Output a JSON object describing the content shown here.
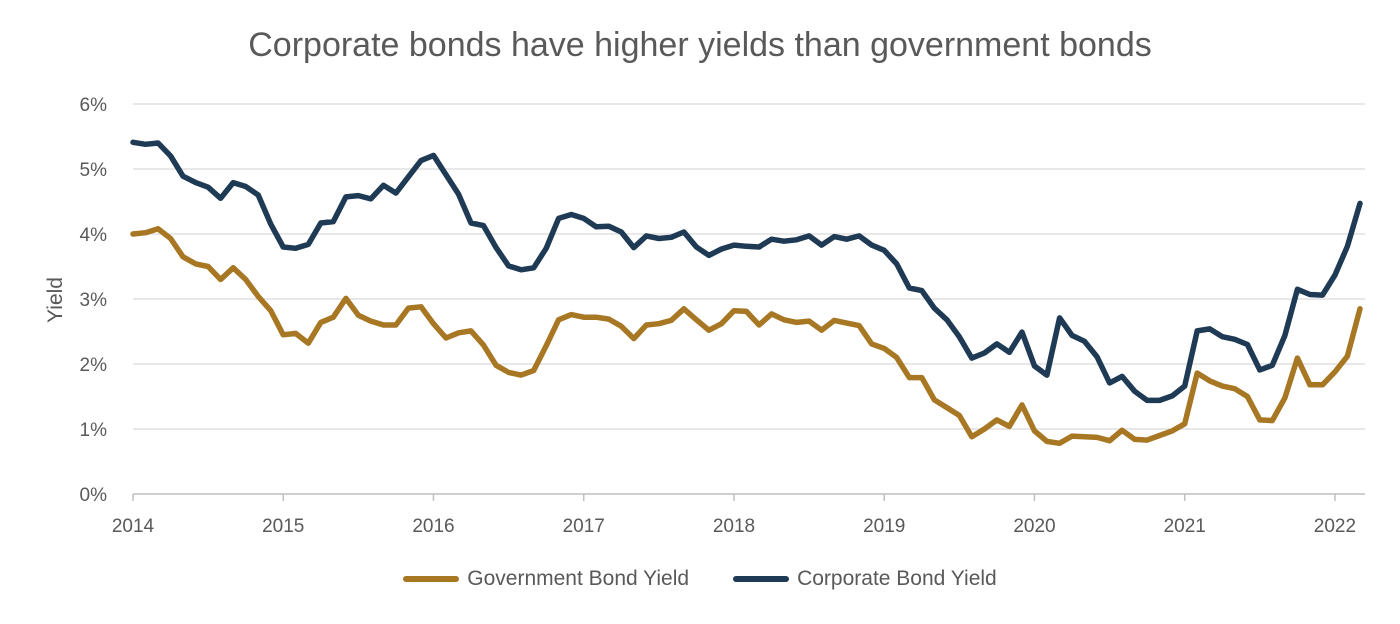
{
  "chart_data": {
    "type": "line",
    "title": "Corporate bonds have higher yields than government bonds",
    "xlabel": "",
    "ylabel": "Yield",
    "xlim": [
      2014,
      2022.2
    ],
    "ylim": [
      0,
      6
    ],
    "x_ticks": [
      "2014",
      "2015",
      "2016",
      "2017",
      "2018",
      "2019",
      "2020",
      "2021",
      "2022"
    ],
    "y_ticks": [
      "0%",
      "1%",
      "2%",
      "3%",
      "4%",
      "5%",
      "6%"
    ],
    "grid": true,
    "legend_position": "bottom",
    "x": [
      2014.0,
      2014.083,
      2014.167,
      2014.25,
      2014.333,
      2014.417,
      2014.5,
      2014.583,
      2014.667,
      2014.75,
      2014.833,
      2014.917,
      2015.0,
      2015.083,
      2015.167,
      2015.25,
      2015.333,
      2015.417,
      2015.5,
      2015.583,
      2015.667,
      2015.75,
      2015.833,
      2015.917,
      2016.0,
      2016.083,
      2016.167,
      2016.25,
      2016.333,
      2016.417,
      2016.5,
      2016.583,
      2016.667,
      2016.75,
      2016.833,
      2016.917,
      2017.0,
      2017.083,
      2017.167,
      2017.25,
      2017.333,
      2017.417,
      2017.5,
      2017.583,
      2017.667,
      2017.75,
      2017.833,
      2017.917,
      2018.0,
      2018.083,
      2018.167,
      2018.25,
      2018.333,
      2018.417,
      2018.5,
      2018.583,
      2018.667,
      2018.75,
      2018.833,
      2018.917,
      2019.0,
      2019.083,
      2019.167,
      2019.25,
      2019.333,
      2019.417,
      2019.5,
      2019.583,
      2019.667,
      2019.75,
      2019.833,
      2019.917,
      2020.0,
      2020.083,
      2020.167,
      2020.25,
      2020.333,
      2020.417,
      2020.5,
      2020.583,
      2020.667,
      2020.75,
      2020.833,
      2020.917,
      2021.0,
      2021.083,
      2021.167,
      2021.25,
      2021.333,
      2021.417,
      2021.5,
      2021.583,
      2021.667,
      2021.75,
      2021.833,
      2021.917,
      2022.0,
      2022.083,
      2022.167
    ],
    "series": [
      {
        "name": "Government Bond Yield",
        "color": "#A87724",
        "values": [
          4.0,
          4.02,
          4.08,
          3.93,
          3.65,
          3.54,
          3.5,
          3.3,
          3.48,
          3.3,
          3.04,
          2.82,
          2.45,
          2.47,
          2.32,
          2.64,
          2.72,
          3.01,
          2.75,
          2.66,
          2.6,
          2.6,
          2.86,
          2.88,
          2.62,
          2.4,
          2.48,
          2.51,
          2.29,
          1.98,
          1.87,
          1.83,
          1.9,
          2.28,
          2.68,
          2.76,
          2.72,
          2.72,
          2.69,
          2.58,
          2.39,
          2.6,
          2.62,
          2.67,
          2.85,
          2.68,
          2.52,
          2.62,
          2.82,
          2.81,
          2.6,
          2.77,
          2.68,
          2.64,
          2.66,
          2.52,
          2.67,
          2.63,
          2.59,
          2.31,
          2.24,
          2.1,
          1.79,
          1.79,
          1.45,
          1.33,
          1.21,
          0.88,
          1.0,
          1.14,
          1.04,
          1.37,
          0.97,
          0.81,
          0.78,
          0.89,
          0.88,
          0.87,
          0.82,
          0.98,
          0.84,
          0.83,
          0.9,
          0.97,
          1.08,
          1.86,
          1.74,
          1.66,
          1.62,
          1.5,
          1.14,
          1.13,
          1.48,
          2.09,
          1.68,
          1.68,
          1.88,
          2.12,
          2.85
        ]
      },
      {
        "name": "Corporate Bond Yield",
        "color": "#1F3A54",
        "values": [
          5.41,
          5.38,
          5.4,
          5.2,
          4.89,
          4.79,
          4.72,
          4.55,
          4.79,
          4.73,
          4.6,
          4.15,
          3.8,
          3.78,
          3.84,
          4.17,
          4.19,
          4.57,
          4.59,
          4.54,
          4.75,
          4.63,
          4.88,
          5.13,
          5.21,
          4.91,
          4.61,
          4.17,
          4.13,
          3.79,
          3.51,
          3.45,
          3.48,
          3.78,
          4.24,
          4.3,
          4.24,
          4.11,
          4.12,
          4.03,
          3.79,
          3.97,
          3.93,
          3.95,
          4.03,
          3.8,
          3.67,
          3.77,
          3.83,
          3.81,
          3.8,
          3.92,
          3.89,
          3.91,
          3.97,
          3.83,
          3.96,
          3.92,
          3.97,
          3.83,
          3.75,
          3.54,
          3.17,
          3.13,
          2.86,
          2.68,
          2.42,
          2.09,
          2.17,
          2.31,
          2.18,
          2.49,
          1.97,
          1.83,
          2.71,
          2.44,
          2.35,
          2.11,
          1.71,
          1.81,
          1.58,
          1.44,
          1.44,
          1.51,
          1.66,
          2.51,
          2.54,
          2.42,
          2.38,
          2.3,
          1.91,
          1.98,
          2.44,
          3.15,
          3.07,
          3.06,
          3.37,
          3.81,
          4.47
        ]
      }
    ]
  }
}
